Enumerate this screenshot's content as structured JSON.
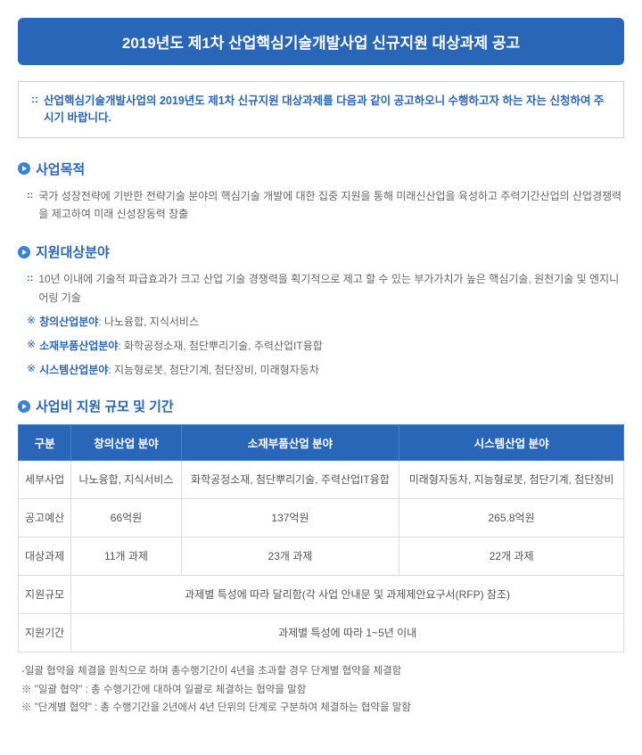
{
  "title": "2019년도 제1차 산업핵심기술개발사업 신규지원 대상과제 공고",
  "intro": "산업핵심기술개발사업의 2019년도 제1차 신규지원 대상과제를 다음과 같이 공고하오니 수행하고자 하는 자는 신청하여 주시기 바랍니다.",
  "sections": {
    "purpose": {
      "heading": "사업목적",
      "text": "국가 성장전략에 기반한 전략기술 분야의 핵심기술 개발에 대한 집중 지원을 통해 미래신산업을 육성하고 주력기간산업의 산업경쟁력을 제고하여 미래 신성장동력 창출"
    },
    "fields": {
      "heading": "지원대상분야",
      "text": "10년 이내에 기술적 파급효과가 크고 산업 기술 경쟁력을 획기적으로 제고 할 수 있는 부가가치가 높은 핵심기술, 원천기술 및 엔지니어링 기술",
      "items": [
        {
          "label": "창의산업분야",
          "value": " : 나노융합, 지식서비스"
        },
        {
          "label": "소재부품산업분야",
          "value": " : 화학공정소재, 첨단뿌리기술, 주력산업IT융합"
        },
        {
          "label": "시스템산업분야",
          "value": " : 지능형로봇, 첨단기계, 첨단장비, 미래형자동차"
        }
      ]
    },
    "budget": {
      "heading": "사업비 지원 규모 및 기간"
    }
  },
  "table": {
    "headers": [
      "구분",
      "창의산업 분야",
      "소재부품산업 분야",
      "시스템산업 분야"
    ],
    "rows": [
      {
        "label": "세부사업",
        "c1": "나노융합, 지식서비스",
        "c2": "화학공정소재, 첨단뿌리기술, 주력산업IT융합",
        "c3": "미래형자동차, 지능형로봇, 첨단기계, 첨단장비"
      },
      {
        "label": "공고예산",
        "c1": "66억원",
        "c2": "137억원",
        "c3": "265.8억원"
      },
      {
        "label": "대상과제",
        "c1": "11개 과제",
        "c2": "23개 과제",
        "c3": "22개 과제"
      },
      {
        "label": "지원규모",
        "merged": "과제별 특성에 따라 달리함(각 사업 안내문 및 과제제안요구서(RFP) 참조)"
      },
      {
        "label": "지원기간",
        "merged": "과제별 특성에 따라 1~5년 이내"
      }
    ]
  },
  "notes": [
    "-일괄 협약을 체결을 원칙으로 하며 총수행기간이 4년을 초과할 경우 단계별 협약을 체결함",
    "※ \"일괄 협약\" : 총 수행기간에 대하여 일괄로 체결하는 협약을 말함",
    "※ \"단계별 협약\" : 총 수행기간을 2년에서 4년 단위의 단계로 구분하여 체결하는 협약을 말함"
  ],
  "colors": {
    "primary": "#2966b8",
    "border": "#dddddd",
    "text": "#555555"
  }
}
